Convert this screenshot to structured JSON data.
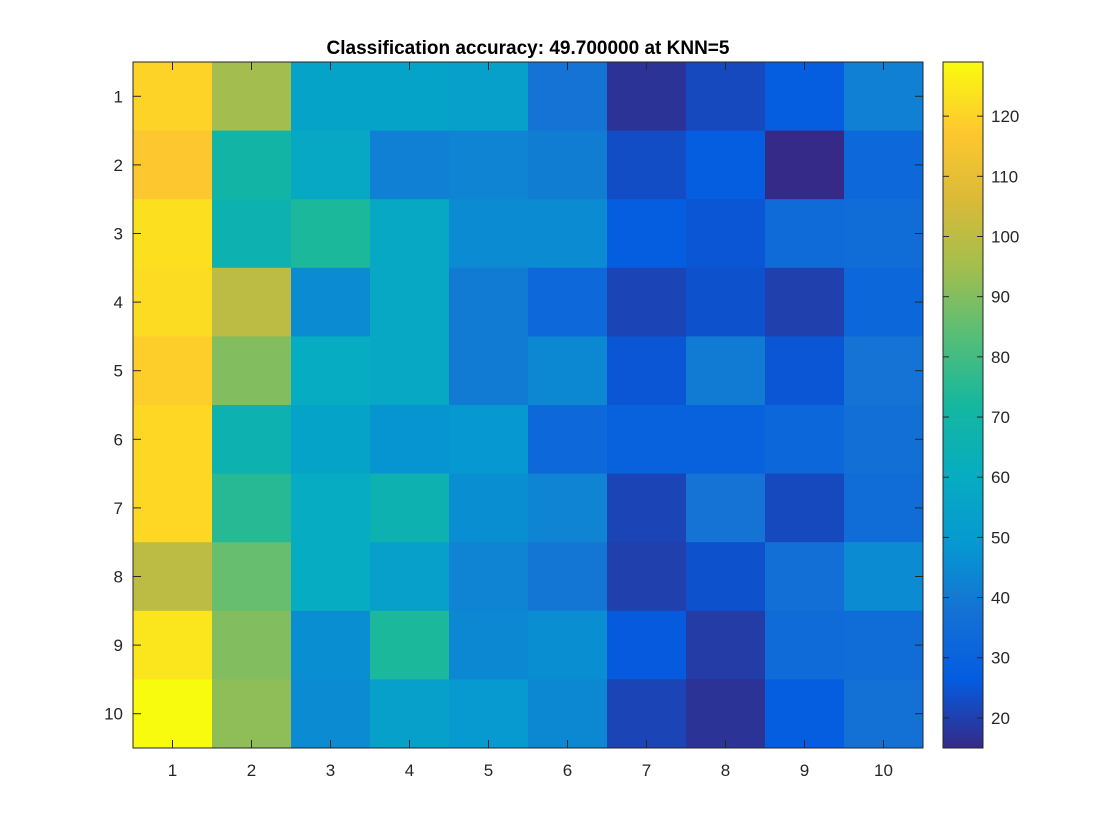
{
  "chart_data": {
    "type": "heatmap",
    "title": "Classification accuracy: 49.700000 at KNN=5",
    "xlabel": "",
    "ylabel": "",
    "x_categories": [
      "1",
      "2",
      "3",
      "4",
      "5",
      "6",
      "7",
      "8",
      "9",
      "10"
    ],
    "y_categories": [
      "1",
      "2",
      "3",
      "4",
      "5",
      "6",
      "7",
      "8",
      "9",
      "10"
    ],
    "values": [
      [
        120,
        95,
        55,
        55,
        53,
        38,
        17,
        22,
        27,
        42
      ],
      [
        117,
        70,
        58,
        42,
        43,
        41,
        23,
        27,
        15,
        33
      ],
      [
        123,
        66,
        73,
        58,
        45,
        45,
        27,
        25,
        34,
        35
      ],
      [
        122,
        100,
        45,
        58,
        40,
        33,
        21,
        24,
        20,
        32
      ],
      [
        119,
        90,
        60,
        58,
        40,
        44,
        25,
        40,
        25,
        38
      ],
      [
        121,
        66,
        55,
        48,
        49,
        33,
        29,
        29,
        32,
        36
      ],
      [
        121,
        75,
        60,
        66,
        46,
        43,
        21,
        38,
        22,
        35
      ],
      [
        100,
        86,
        60,
        53,
        43,
        39,
        20,
        24,
        36,
        45
      ],
      [
        124,
        90,
        46,
        73,
        44,
        46,
        26,
        19,
        34,
        35
      ],
      [
        129,
        92,
        45,
        53,
        50,
        44,
        21,
        17,
        27,
        37
      ]
    ],
    "clim": [
      15,
      129
    ],
    "colorbar_ticks": [
      20,
      30,
      40,
      50,
      60,
      70,
      80,
      90,
      100,
      110,
      120
    ],
    "colormap": "parula",
    "grid": false
  }
}
